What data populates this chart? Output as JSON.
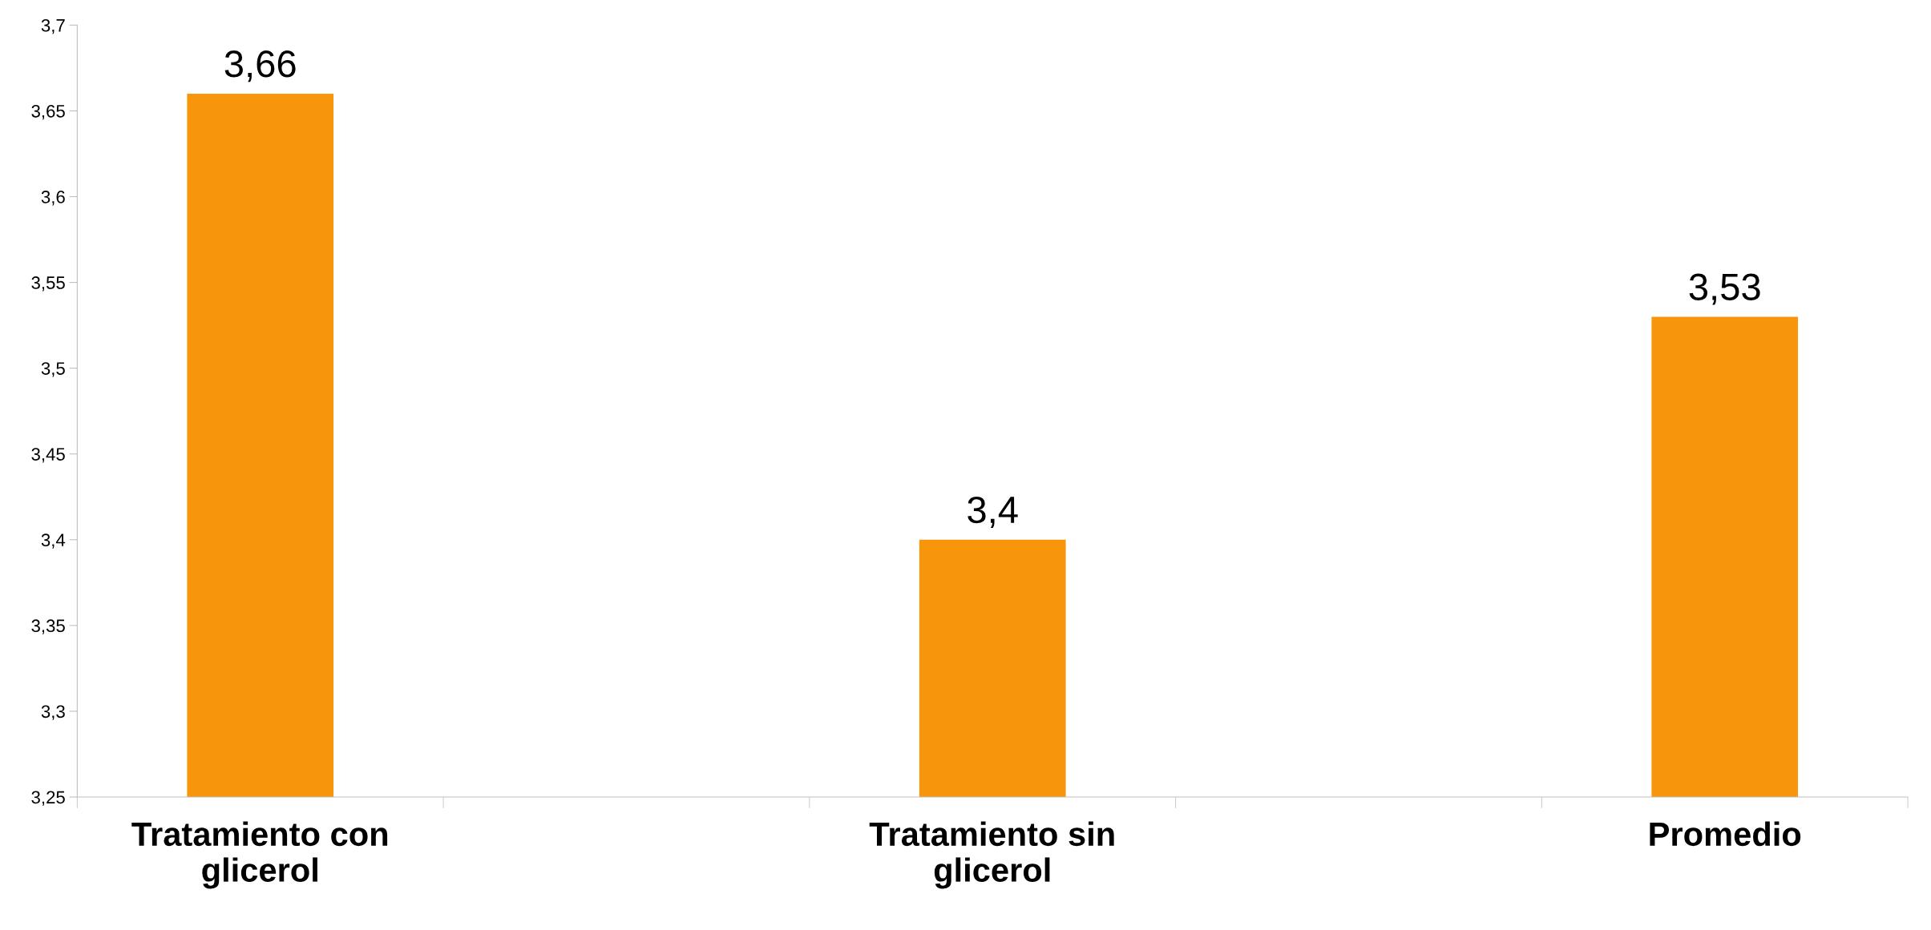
{
  "chart_data": {
    "type": "bar",
    "categories": [
      "Tratamiento con glicerol",
      null,
      "Tratamiento sin glicerol",
      null,
      "Promedio"
    ],
    "values": [
      3.66,
      null,
      3.4,
      null,
      3.53
    ],
    "value_labels": [
      "3,66",
      null,
      "3,4",
      null,
      "3,53"
    ],
    "color": "#f7960a",
    "ylim": [
      3.25,
      3.7
    ],
    "yticks": [
      {
        "value": 3.25,
        "label": "3,25"
      },
      {
        "value": 3.3,
        "label": "3,3"
      },
      {
        "value": 3.35,
        "label": "3,35"
      },
      {
        "value": 3.4,
        "label": "3,4"
      },
      {
        "value": 3.45,
        "label": "3,45"
      },
      {
        "value": 3.5,
        "label": "3,5"
      },
      {
        "value": 3.55,
        "label": "3,55"
      },
      {
        "value": 3.6,
        "label": "3,6"
      },
      {
        "value": 3.65,
        "label": "3,65"
      },
      {
        "value": 3.7,
        "label": "3,7"
      }
    ],
    "grid": false,
    "legend": false
  }
}
